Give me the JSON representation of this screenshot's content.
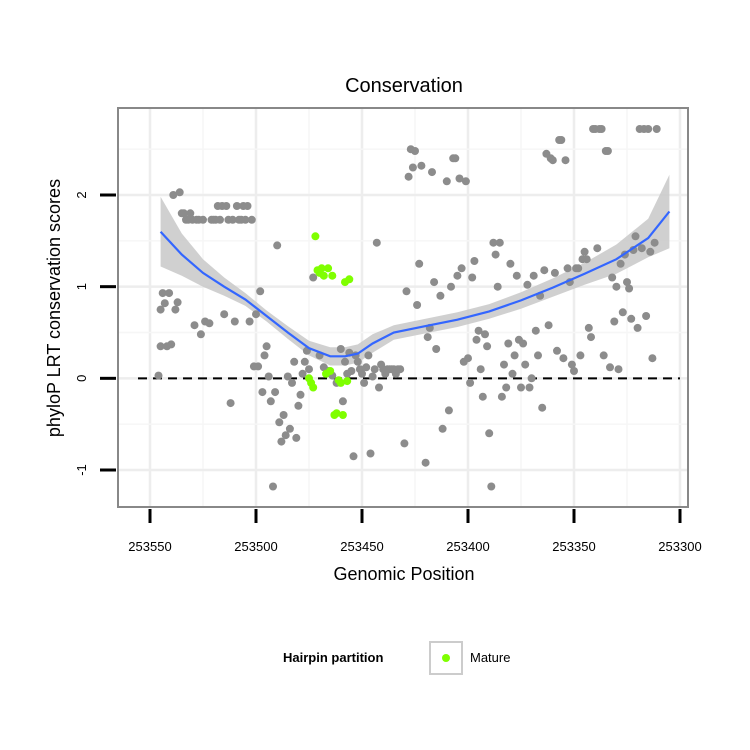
{
  "chart_data": {
    "type": "scatter",
    "title": "Conservation",
    "xlabel": "Genomic Position",
    "ylabel": "phyloP LRT conservation scores",
    "xlim": [
      253555,
      253295
    ],
    "ylim": [
      -1.35,
      2.9
    ],
    "x_reversed": true,
    "x_ticks": [
      253550,
      253500,
      253450,
      253400,
      253350,
      253300
    ],
    "y_ticks": [
      -1,
      0,
      1,
      2
    ],
    "grid": true,
    "reference_line": {
      "y": 0,
      "style": "dashed"
    },
    "legend": {
      "title": "Hairpin partition",
      "placement": "bottom",
      "entries": [
        {
          "label": "Mature",
          "color": "#7fff00"
        }
      ]
    },
    "colors": {
      "other": "#8c8c8c",
      "mature": "#7fff00",
      "smooth": "#3366ff",
      "band": "#c8c8c8"
    },
    "series": [
      {
        "group": "other",
        "points": [
          [
            253546,
            0.03
          ],
          [
            253545,
            0.35
          ],
          [
            253545,
            0.75
          ],
          [
            253544,
            0.93
          ],
          [
            253543,
            0.82
          ],
          [
            253542,
            0.35
          ],
          [
            253541,
            0.93
          ],
          [
            253540,
            0.37
          ],
          [
            253539,
            2.0
          ],
          [
            253538,
            0.75
          ],
          [
            253537,
            0.83
          ],
          [
            253536,
            2.03
          ],
          [
            253535,
            1.8
          ],
          [
            253534,
            1.8
          ],
          [
            253533,
            1.73
          ],
          [
            253532,
            1.73
          ],
          [
            253531,
            1.8
          ],
          [
            253530,
            1.73
          ],
          [
            253529,
            0.58
          ],
          [
            253528,
            1.73
          ],
          [
            253527,
            1.73
          ],
          [
            253526,
            0.48
          ],
          [
            253525,
            1.73
          ],
          [
            253524,
            0.62
          ],
          [
            253522,
            0.6
          ],
          [
            253521,
            1.73
          ],
          [
            253520,
            1.73
          ],
          [
            253519,
            1.73
          ],
          [
            253518,
            1.88
          ],
          [
            253517,
            1.73
          ],
          [
            253516,
            1.88
          ],
          [
            253515,
            0.7
          ],
          [
            253514,
            1.88
          ],
          [
            253513,
            1.73
          ],
          [
            253512,
            -0.27
          ],
          [
            253511,
            1.73
          ],
          [
            253510,
            0.62
          ],
          [
            253509,
            1.88
          ],
          [
            253508,
            1.73
          ],
          [
            253507,
            1.73
          ],
          [
            253506,
            1.88
          ],
          [
            253505,
            1.73
          ],
          [
            253504,
            1.88
          ],
          [
            253503,
            0.62
          ],
          [
            253502,
            1.73
          ],
          [
            253501,
            0.13
          ],
          [
            253500,
            0.7
          ],
          [
            253499,
            0.13
          ],
          [
            253498,
            0.95
          ],
          [
            253497,
            -0.15
          ],
          [
            253496,
            0.25
          ],
          [
            253495,
            0.35
          ],
          [
            253494,
            0.02
          ],
          [
            253493,
            -0.25
          ],
          [
            253492,
            -1.18
          ],
          [
            253491,
            -0.15
          ],
          [
            253490,
            1.45
          ],
          [
            253489,
            -0.48
          ],
          [
            253488,
            -0.69
          ],
          [
            253487,
            -0.4
          ],
          [
            253486,
            -0.62
          ],
          [
            253485,
            0.02
          ],
          [
            253484,
            -0.55
          ],
          [
            253483,
            -0.05
          ],
          [
            253482,
            0.18
          ],
          [
            253481,
            -0.65
          ],
          [
            253480,
            -0.3
          ],
          [
            253479,
            -0.18
          ],
          [
            253478,
            0.05
          ],
          [
            253477,
            0.18
          ],
          [
            253476,
            0.3
          ],
          [
            253475,
            0.1
          ],
          [
            253473,
            1.1
          ],
          [
            253470,
            0.25
          ],
          [
            253468,
            0.12
          ],
          [
            253466,
            0.08
          ],
          [
            253464,
            0.03
          ],
          [
            253462,
            -0.05
          ],
          [
            253460,
            0.32
          ],
          [
            253459,
            -0.25
          ],
          [
            253458,
            0.18
          ],
          [
            253457,
            0.05
          ],
          [
            253456,
            0.28
          ],
          [
            253455,
            0.08
          ],
          [
            253454,
            -0.85
          ],
          [
            253453,
            0.25
          ],
          [
            253452,
            0.18
          ],
          [
            253451,
            0.1
          ],
          [
            253450,
            0.05
          ],
          [
            253449,
            -0.05
          ],
          [
            253448,
            0.12
          ],
          [
            253447,
            0.25
          ],
          [
            253446,
            -0.82
          ],
          [
            253445,
            0.02
          ],
          [
            253444,
            0.1
          ],
          [
            253443,
            1.48
          ],
          [
            253442,
            -0.1
          ],
          [
            253441,
            0.15
          ],
          [
            253440,
            0.1
          ],
          [
            253439,
            0.05
          ],
          [
            253438,
            0.1
          ],
          [
            253437,
            0.1
          ],
          [
            253436,
            0.1
          ],
          [
            253435,
            0.1
          ],
          [
            253434,
            0.05
          ],
          [
            253433,
            0.1
          ],
          [
            253432,
            0.1
          ],
          [
            253430,
            -0.71
          ],
          [
            253429,
            0.95
          ],
          [
            253428,
            2.2
          ],
          [
            253427,
            2.5
          ],
          [
            253426,
            2.3
          ],
          [
            253425,
            2.48
          ],
          [
            253424,
            0.8
          ],
          [
            253423,
            1.25
          ],
          [
            253422,
            2.32
          ],
          [
            253420,
            -0.92
          ],
          [
            253419,
            0.45
          ],
          [
            253418,
            0.55
          ],
          [
            253417,
            2.25
          ],
          [
            253416,
            1.05
          ],
          [
            253415,
            0.32
          ],
          [
            253413,
            0.9
          ],
          [
            253412,
            -0.55
          ],
          [
            253410,
            2.15
          ],
          [
            253409,
            -0.35
          ],
          [
            253408,
            1.0
          ],
          [
            253407,
            2.4
          ],
          [
            253406,
            2.4
          ],
          [
            253405,
            1.12
          ],
          [
            253404,
            2.18
          ],
          [
            253403,
            1.2
          ],
          [
            253402,
            0.18
          ],
          [
            253401,
            2.15
          ],
          [
            253400,
            0.22
          ],
          [
            253399,
            -0.05
          ],
          [
            253398,
            1.1
          ],
          [
            253397,
            1.28
          ],
          [
            253396,
            0.42
          ],
          [
            253395,
            0.52
          ],
          [
            253394,
            0.1
          ],
          [
            253393,
            -0.2
          ],
          [
            253392,
            0.48
          ],
          [
            253391,
            0.35
          ],
          [
            253390,
            -0.6
          ],
          [
            253389,
            -1.18
          ],
          [
            253388,
            1.48
          ],
          [
            253387,
            1.35
          ],
          [
            253386,
            1.0
          ],
          [
            253385,
            1.48
          ],
          [
            253384,
            -0.2
          ],
          [
            253383,
            0.15
          ],
          [
            253382,
            -0.1
          ],
          [
            253381,
            0.38
          ],
          [
            253380,
            1.25
          ],
          [
            253379,
            0.05
          ],
          [
            253378,
            0.25
          ],
          [
            253377,
            1.12
          ],
          [
            253376,
            0.42
          ],
          [
            253375,
            -0.1
          ],
          [
            253374,
            0.38
          ],
          [
            253373,
            0.15
          ],
          [
            253372,
            1.02
          ],
          [
            253371,
            -0.1
          ],
          [
            253370,
            0.0
          ],
          [
            253369,
            1.12
          ],
          [
            253368,
            0.52
          ],
          [
            253367,
            0.25
          ],
          [
            253366,
            0.9
          ],
          [
            253365,
            -0.32
          ],
          [
            253364,
            1.18
          ],
          [
            253363,
            2.45
          ],
          [
            253362,
            0.58
          ],
          [
            253361,
            2.4
          ],
          [
            253360,
            2.38
          ],
          [
            253359,
            1.15
          ],
          [
            253358,
            0.3
          ],
          [
            253357,
            2.6
          ],
          [
            253356,
            2.6
          ],
          [
            253355,
            0.22
          ],
          [
            253354,
            2.38
          ],
          [
            253353,
            1.2
          ],
          [
            253352,
            1.05
          ],
          [
            253351,
            0.15
          ],
          [
            253350,
            0.08
          ],
          [
            253349,
            1.2
          ],
          [
            253348,
            1.2
          ],
          [
            253347,
            0.25
          ],
          [
            253346,
            1.3
          ],
          [
            253345,
            1.38
          ],
          [
            253344,
            1.3
          ],
          [
            253343,
            0.55
          ],
          [
            253342,
            0.45
          ],
          [
            253341,
            2.72
          ],
          [
            253340,
            2.72
          ],
          [
            253339,
            1.42
          ],
          [
            253338,
            2.72
          ],
          [
            253337,
            2.72
          ],
          [
            253336,
            0.25
          ],
          [
            253335,
            2.48
          ],
          [
            253334,
            2.48
          ],
          [
            253333,
            0.12
          ],
          [
            253332,
            1.1
          ],
          [
            253331,
            0.62
          ],
          [
            253330,
            1.0
          ],
          [
            253329,
            0.1
          ],
          [
            253328,
            1.25
          ],
          [
            253327,
            0.72
          ],
          [
            253326,
            1.35
          ],
          [
            253325,
            1.05
          ],
          [
            253324,
            0.98
          ],
          [
            253323,
            0.65
          ],
          [
            253322,
            1.4
          ],
          [
            253321,
            1.55
          ],
          [
            253320,
            0.55
          ],
          [
            253319,
            2.72
          ],
          [
            253318,
            1.42
          ],
          [
            253317,
            2.72
          ],
          [
            253316,
            0.68
          ],
          [
            253315,
            2.72
          ],
          [
            253314,
            1.38
          ],
          [
            253313,
            0.22
          ],
          [
            253312,
            1.48
          ],
          [
            253311,
            2.72
          ]
        ]
      },
      {
        "group": "mature",
        "name": "Mature",
        "points": [
          [
            253475,
            0.0
          ],
          [
            253474,
            -0.05
          ],
          [
            253473,
            -0.1
          ],
          [
            253472,
            1.55
          ],
          [
            253471,
            1.18
          ],
          [
            253470,
            1.15
          ],
          [
            253469,
            1.2
          ],
          [
            253468,
            1.12
          ],
          [
            253467,
            0.05
          ],
          [
            253466,
            1.2
          ],
          [
            253465,
            0.08
          ],
          [
            253464,
            1.12
          ],
          [
            253463,
            -0.4
          ],
          [
            253462,
            -0.38
          ],
          [
            253461,
            -0.02
          ],
          [
            253460,
            -0.05
          ],
          [
            253459,
            -0.4
          ],
          [
            253458,
            1.05
          ],
          [
            253457,
            -0.03
          ],
          [
            253456,
            1.08
          ]
        ]
      }
    ],
    "smooth": {
      "x": [
        253545,
        253535,
        253525,
        253515,
        253505,
        253495,
        253485,
        253475,
        253465,
        253458,
        253452,
        253445,
        253435,
        253420,
        253405,
        253390,
        253375,
        253360,
        253345,
        253330,
        253315,
        253305
      ],
      "y": [
        1.6,
        1.35,
        1.15,
        1.0,
        0.86,
        0.68,
        0.5,
        0.33,
        0.24,
        0.24,
        0.27,
        0.38,
        0.5,
        0.57,
        0.64,
        0.73,
        0.85,
        0.99,
        1.14,
        1.3,
        1.53,
        1.82
      ],
      "lower": [
        1.22,
        1.12,
        1.0,
        0.9,
        0.79,
        0.62,
        0.43,
        0.25,
        0.14,
        0.14,
        0.17,
        0.28,
        0.42,
        0.49,
        0.56,
        0.65,
        0.76,
        0.89,
        1.02,
        1.14,
        1.32,
        1.42
      ],
      "upper": [
        1.98,
        1.58,
        1.3,
        1.1,
        0.93,
        0.74,
        0.57,
        0.41,
        0.34,
        0.34,
        0.37,
        0.48,
        0.58,
        0.65,
        0.72,
        0.81,
        0.94,
        1.09,
        1.26,
        1.46,
        1.74,
        2.22
      ]
    }
  }
}
